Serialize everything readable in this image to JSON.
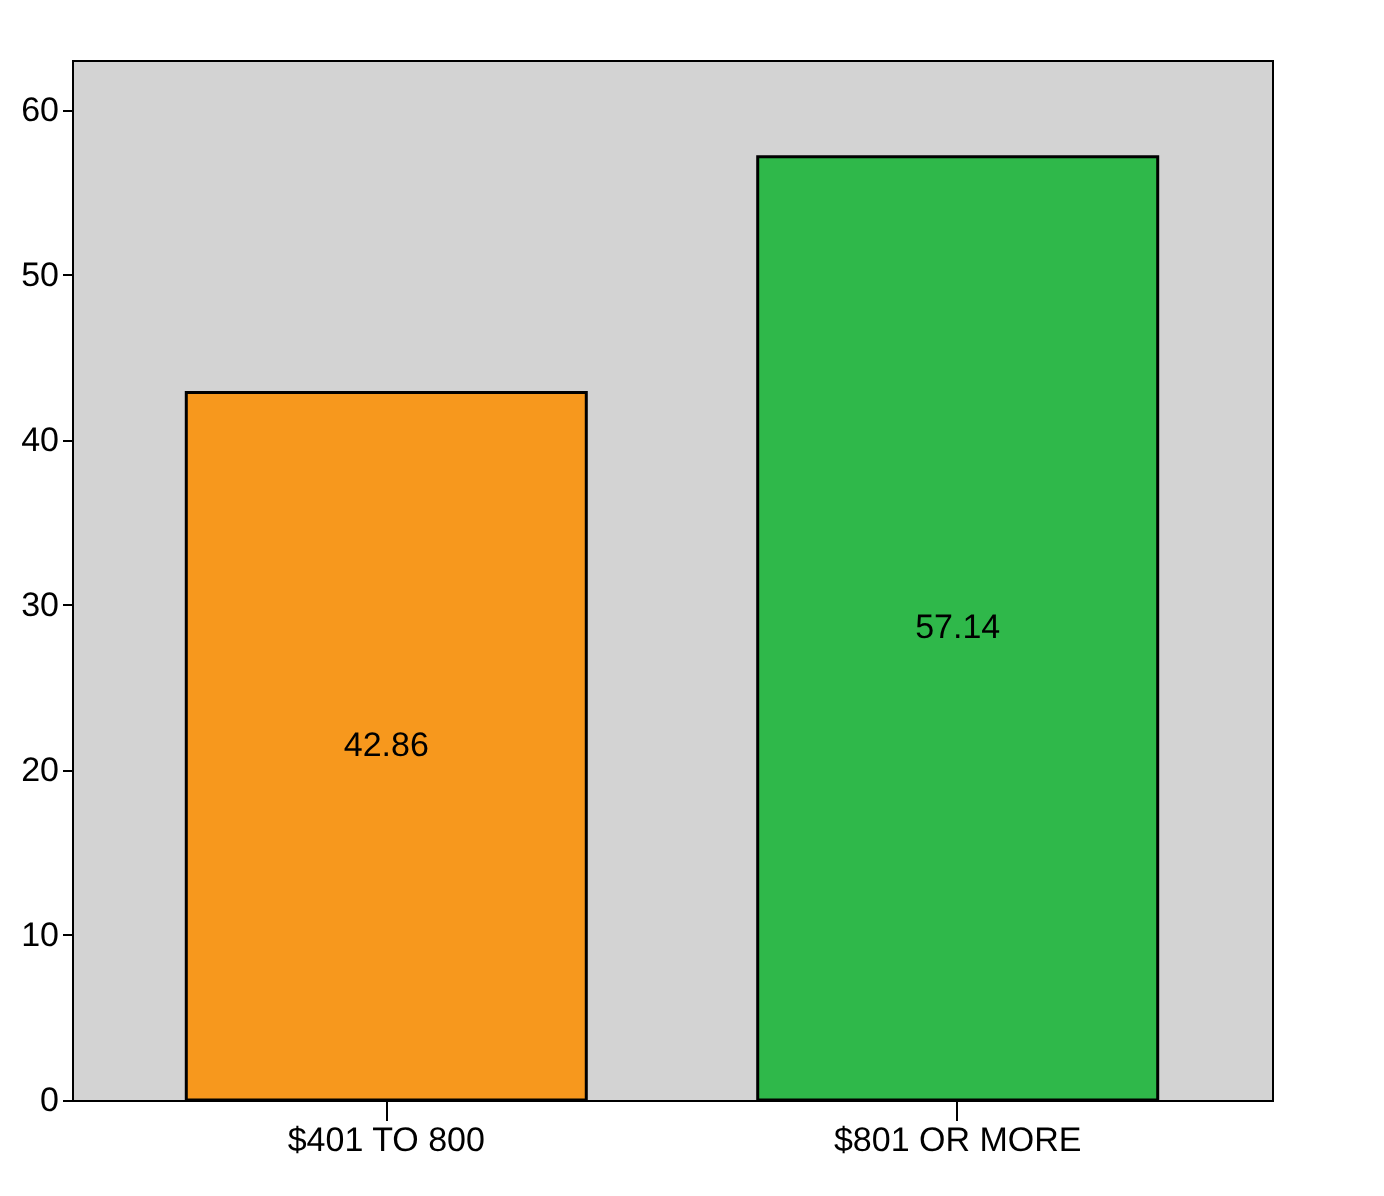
{
  "chart_data": {
    "type": "bar",
    "categories": [
      "$401 TO 800",
      "$801 OR MORE"
    ],
    "values": [
      42.86,
      57.14
    ],
    "colors": [
      "#f7981d",
      "#2fb84a"
    ],
    "ylim": [
      0,
      63
    ],
    "yticks": [
      0,
      10,
      20,
      30,
      40,
      50,
      60
    ],
    "grid": false,
    "data_labels": true
  }
}
